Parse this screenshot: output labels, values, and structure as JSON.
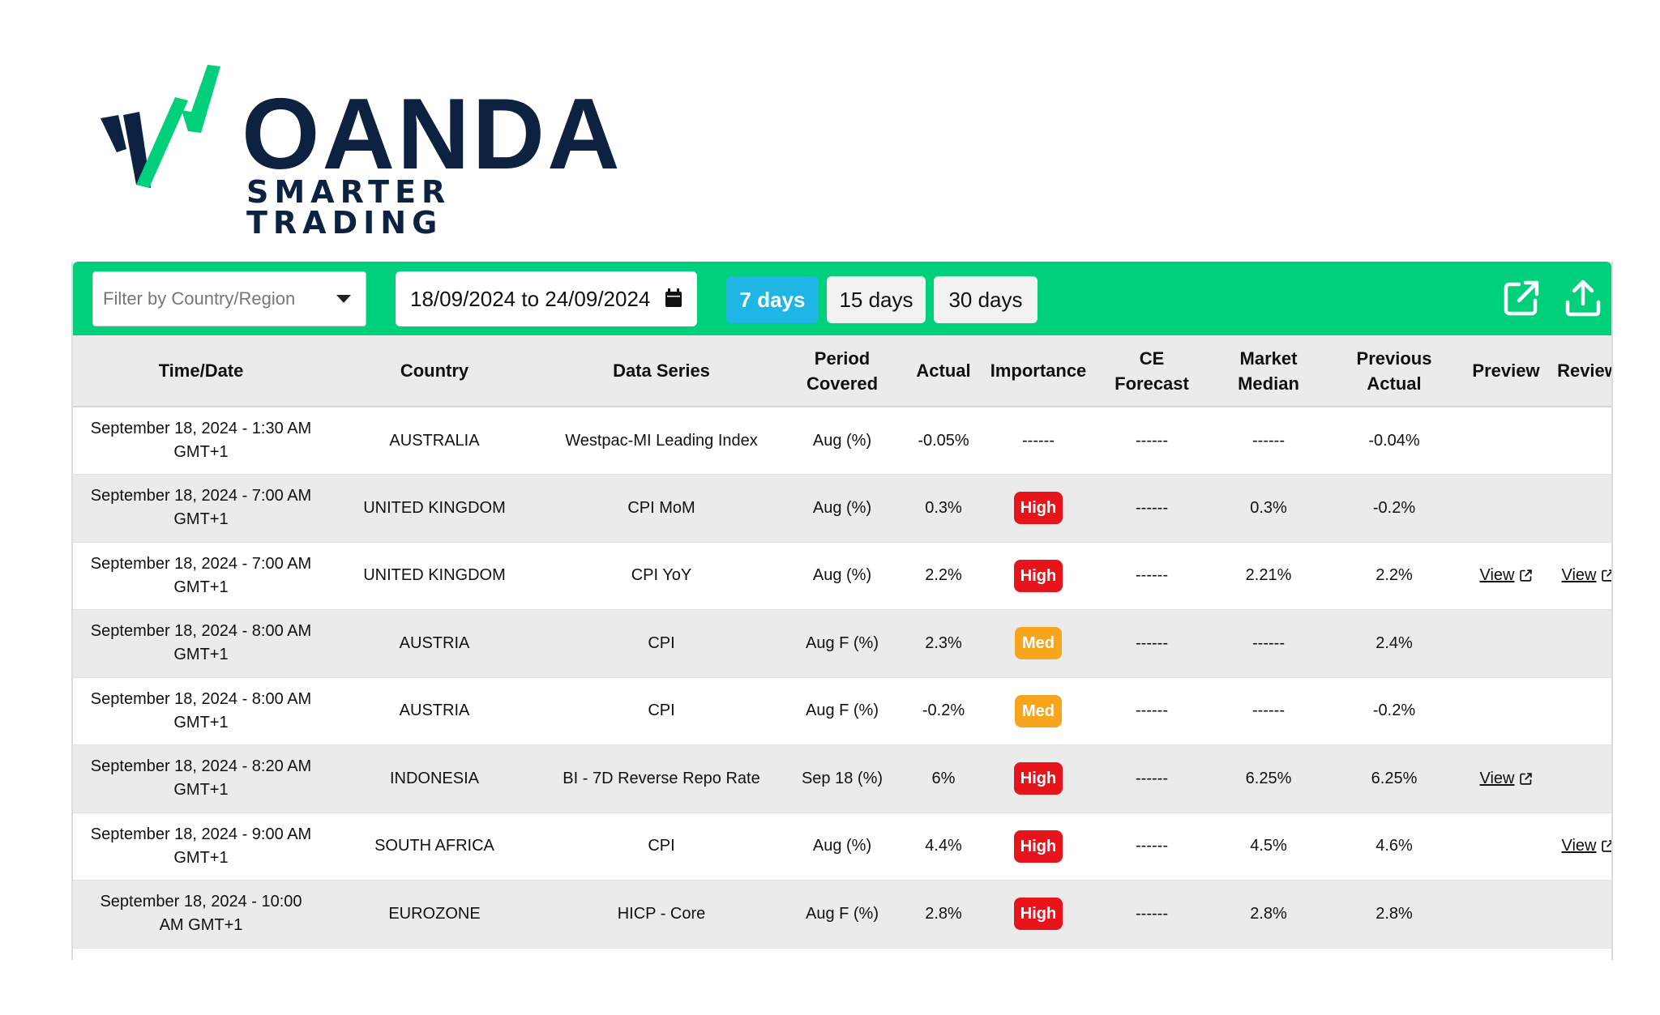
{
  "logo": {
    "wordmark": "OANDA",
    "tagline": "SMARTER TRADING",
    "colors": {
      "navy": "#0d2240",
      "green": "#00d07b"
    }
  },
  "toolbar": {
    "filter_placeholder": "Filter by Country/Region",
    "date_range": "18/09/2024 to 24/09/2024",
    "ranges": [
      {
        "label": "7 days",
        "active": true
      },
      {
        "label": "15 days",
        "active": false
      },
      {
        "label": "30 days",
        "active": false
      }
    ],
    "icons": [
      "external-link-icon",
      "upload-icon",
      "calendar-icon",
      "chevron-down-icon"
    ],
    "colors": {
      "bar": "#00d07b",
      "active_range": "#1fb6e6"
    }
  },
  "table": {
    "headers": {
      "time": "Time/Date",
      "country": "Country",
      "series": "Data Series",
      "period": [
        "Period",
        "Covered"
      ],
      "actual": "Actual",
      "importance": "Importance",
      "ce_forecast": [
        "CE",
        "Forecast"
      ],
      "market_median": [
        "Market",
        "Median"
      ],
      "previous": [
        "Previous",
        "Actual"
      ],
      "preview": "Preview",
      "review": "Review"
    },
    "rows": [
      {
        "time": [
          "September 18, 2024 - 1:30 AM",
          "GMT+1"
        ],
        "country": "AUSTRALIA",
        "series": "Westpac-MI Leading Index",
        "period": "Aug (%)",
        "actual": "-0.05%",
        "importance": "------",
        "ce_forecast": "------",
        "market_median": "------",
        "previous": "-0.04%",
        "preview": "",
        "review": ""
      },
      {
        "time": [
          "September 18, 2024 - 7:00 AM",
          "GMT+1"
        ],
        "country": "UNITED KINGDOM",
        "series": "CPI MoM",
        "period": "Aug (%)",
        "actual": "0.3%",
        "importance": "High",
        "ce_forecast": "------",
        "market_median": "0.3%",
        "previous": "-0.2%",
        "preview": "",
        "review": ""
      },
      {
        "time": [
          "September 18, 2024 - 7:00 AM",
          "GMT+1"
        ],
        "country": "UNITED KINGDOM",
        "series": "CPI YoY",
        "period": "Aug (%)",
        "actual": "2.2%",
        "importance": "High",
        "ce_forecast": "------",
        "market_median": "2.21%",
        "previous": "2.2%",
        "preview": "View",
        "review": "View"
      },
      {
        "time": [
          "September 18, 2024 - 8:00 AM",
          "GMT+1"
        ],
        "country": "AUSTRIA",
        "series": "CPI",
        "period": "Aug F (%)",
        "actual": "2.3%",
        "importance": "Med",
        "ce_forecast": "------",
        "market_median": "------",
        "previous": "2.4%",
        "preview": "",
        "review": ""
      },
      {
        "time": [
          "September 18, 2024 - 8:00 AM",
          "GMT+1"
        ],
        "country": "AUSTRIA",
        "series": "CPI",
        "period": "Aug F (%)",
        "actual": "-0.2%",
        "importance": "Med",
        "ce_forecast": "------",
        "market_median": "------",
        "previous": "-0.2%",
        "preview": "",
        "review": ""
      },
      {
        "time": [
          "September 18, 2024 - 8:20 AM",
          "GMT+1"
        ],
        "country": "INDONESIA",
        "series": "BI - 7D Reverse Repo Rate",
        "period": "Sep 18 (%)",
        "actual": "6%",
        "importance": "High",
        "ce_forecast": "------",
        "market_median": "6.25%",
        "previous": "6.25%",
        "preview": "View",
        "review": ""
      },
      {
        "time": [
          "September 18, 2024 - 9:00 AM",
          "GMT+1"
        ],
        "country": "SOUTH AFRICA",
        "series": "CPI",
        "period": "Aug (%)",
        "actual": "4.4%",
        "importance": "High",
        "ce_forecast": "------",
        "market_median": "4.5%",
        "previous": "4.6%",
        "preview": "",
        "review": "View"
      },
      {
        "time": [
          "September 18, 2024 - 10:00",
          "AM GMT+1"
        ],
        "country": "EUROZONE",
        "series": "HICP - Core",
        "period": "Aug F (%)",
        "actual": "2.8%",
        "importance": "High",
        "ce_forecast": "------",
        "market_median": "2.8%",
        "previous": "2.8%",
        "preview": "",
        "review": ""
      }
    ],
    "importance_colors": {
      "High": "#e8141b",
      "Med": "#f7a51d"
    }
  }
}
